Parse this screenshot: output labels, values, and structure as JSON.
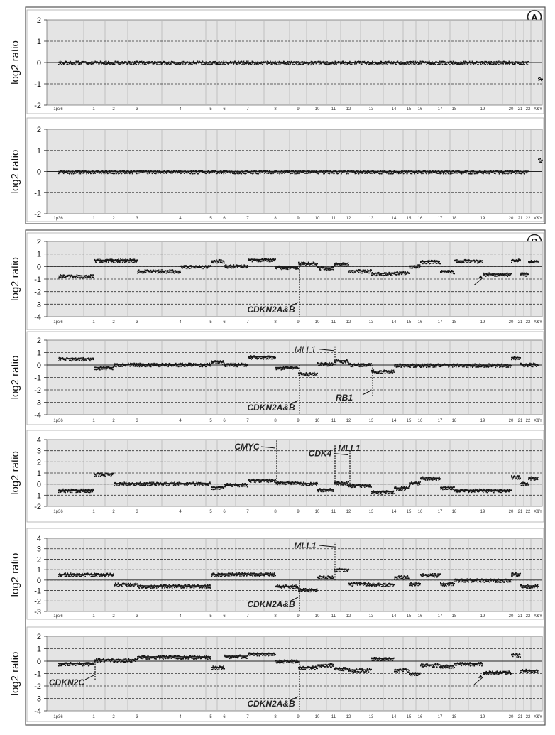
{
  "panels": [
    {
      "label": "A"
    },
    {
      "label": "B"
    }
  ],
  "chromosome_labels": [
    "1p36",
    "1",
    "2",
    "3",
    "4",
    "5",
    "6",
    "7",
    "8",
    "9",
    "10",
    "11",
    "12",
    "13",
    "14",
    "15",
    "16",
    "17",
    "18",
    "19",
    "20",
    "21",
    "22",
    "X&Y"
  ],
  "chart_data": [
    {
      "type": "scatter",
      "panel": "A",
      "ylabel": "log2 ratio",
      "ylim": [
        -2,
        2
      ],
      "yticks": [
        -2,
        -1,
        0,
        1,
        2
      ],
      "grid": true,
      "series": [
        {
          "segments": [
            {
              "from": "1p36",
              "to": "22",
              "y": 0.0
            },
            {
              "from": "X&Y",
              "to": "X&Y",
              "y": -0.75
            }
          ]
        }
      ],
      "annotations": []
    },
    {
      "type": "scatter",
      "panel": "A",
      "ylabel": "log2 ratio",
      "ylim": [
        -2,
        2
      ],
      "yticks": [
        -2,
        -1,
        0,
        1,
        2
      ],
      "grid": true,
      "series": [
        {
          "segments": [
            {
              "from": "1p36",
              "to": "22",
              "y": 0.0
            },
            {
              "from": "X&Y",
              "to": "X&Y",
              "y": 0.55
            }
          ]
        }
      ],
      "annotations": []
    },
    {
      "type": "scatter",
      "panel": "B",
      "ylabel": "log2 ratio",
      "ylim": [
        -4,
        2
      ],
      "yticks": [
        -4,
        -3,
        -2,
        -1,
        0,
        1,
        2
      ],
      "grid": true,
      "series": [
        {
          "segments": [
            {
              "from": "1p36",
              "to": "1",
              "y": -0.75
            },
            {
              "from": "1",
              "to": "3",
              "y": 0.5
            },
            {
              "from": "3",
              "to": "4",
              "y": -0.35
            },
            {
              "from": "4",
              "to": "5",
              "y": 0.0
            },
            {
              "from": "5",
              "to": "6",
              "y": 0.45
            },
            {
              "from": "6",
              "to": "7",
              "y": 0.05
            },
            {
              "from": "7",
              "to": "8",
              "y": 0.55
            },
            {
              "from": "8",
              "to": "9",
              "y": -0.05
            },
            {
              "from": "9",
              "to": "10",
              "y": 0.25
            },
            {
              "from": "10",
              "to": "11",
              "y": -0.1
            },
            {
              "from": "11",
              "to": "12",
              "y": 0.2
            },
            {
              "from": "12",
              "to": "13",
              "y": -0.35
            },
            {
              "from": "13",
              "to": "14",
              "y": -0.55
            },
            {
              "from": "14",
              "to": "15",
              "y": -0.5
            },
            {
              "from": "15",
              "to": "16",
              "y": 0.05
            },
            {
              "from": "16",
              "to": "17",
              "y": 0.4
            },
            {
              "from": "17",
              "to": "18",
              "y": -0.4
            },
            {
              "from": "18",
              "to": "19",
              "y": 0.45
            },
            {
              "from": "19",
              "to": "20",
              "y": -0.6
            },
            {
              "from": "20",
              "to": "21",
              "y": 0.5
            },
            {
              "from": "21",
              "to": "22",
              "y": -0.6
            },
            {
              "from": "22",
              "to": "X&Y",
              "y": 0.4
            }
          ]
        }
      ],
      "annotations": [
        {
          "text": "CDKN2A&B",
          "at": "9",
          "y": -4,
          "style": "bold-italic"
        },
        {
          "text": "",
          "at": "19",
          "y": -0.8,
          "style": "arrow-only"
        }
      ]
    },
    {
      "type": "scatter",
      "panel": "B",
      "ylabel": "log2 ratio",
      "ylim": [
        -4,
        2
      ],
      "yticks": [
        -4,
        -3,
        -2,
        -1,
        0,
        1,
        2
      ],
      "grid": true,
      "series": [
        {
          "segments": [
            {
              "from": "1p36",
              "to": "1",
              "y": 0.5
            },
            {
              "from": "1",
              "to": "2",
              "y": -0.2
            },
            {
              "from": "2",
              "to": "5",
              "y": 0.05
            },
            {
              "from": "5",
              "to": "6",
              "y": 0.25
            },
            {
              "from": "6",
              "to": "7",
              "y": 0.05
            },
            {
              "from": "7",
              "to": "8",
              "y": 0.65
            },
            {
              "from": "8",
              "to": "9",
              "y": -0.2
            },
            {
              "from": "9",
              "to": "10",
              "y": -0.7
            },
            {
              "from": "10",
              "to": "11",
              "y": 0.1
            },
            {
              "from": "11",
              "to": "12",
              "y": 0.35
            },
            {
              "from": "12",
              "to": "13",
              "y": 0.05
            },
            {
              "from": "13",
              "to": "14",
              "y": -0.5
            },
            {
              "from": "14",
              "to": "20",
              "y": 0.0
            },
            {
              "from": "20",
              "to": "21",
              "y": 0.6
            },
            {
              "from": "21",
              "to": "X&Y",
              "y": 0.05
            }
          ]
        }
      ],
      "annotations": [
        {
          "text": "MLL1",
          "at": "11",
          "y": 1.5,
          "style": "italic"
        },
        {
          "text": "CDKN2A&B",
          "at": "9",
          "y": -4,
          "style": "bold-italic"
        },
        {
          "text": "RB1",
          "at": "13",
          "y": -2.5,
          "style": "bold-italic"
        }
      ]
    },
    {
      "type": "scatter",
      "panel": "B",
      "ylabel": "log2 ratio",
      "ylim": [
        -2,
        4
      ],
      "yticks": [
        -2,
        -1,
        0,
        1,
        2,
        3,
        4
      ],
      "grid": true,
      "series": [
        {
          "segments": [
            {
              "from": "1p36",
              "to": "1",
              "y": -0.55
            },
            {
              "from": "1",
              "to": "2",
              "y": 0.9
            },
            {
              "from": "2",
              "to": "5",
              "y": 0.05
            },
            {
              "from": "5",
              "to": "6",
              "y": -0.3
            },
            {
              "from": "6",
              "to": "7",
              "y": -0.05
            },
            {
              "from": "7",
              "to": "8",
              "y": 0.35
            },
            {
              "from": "8",
              "to": "9",
              "y": 0.15
            },
            {
              "from": "9",
              "to": "10",
              "y": 0.05
            },
            {
              "from": "10",
              "to": "11",
              "y": -0.5
            },
            {
              "from": "11",
              "to": "12",
              "y": 0.1
            },
            {
              "from": "12",
              "to": "13",
              "y": -0.1
            },
            {
              "from": "13",
              "to": "14",
              "y": -0.7
            },
            {
              "from": "14",
              "to": "15",
              "y": -0.35
            },
            {
              "from": "15",
              "to": "16",
              "y": 0.1
            },
            {
              "from": "16",
              "to": "17",
              "y": 0.55
            },
            {
              "from": "17",
              "to": "18",
              "y": -0.3
            },
            {
              "from": "18",
              "to": "20",
              "y": -0.55
            },
            {
              "from": "20",
              "to": "21",
              "y": 0.65
            },
            {
              "from": "21",
              "to": "22",
              "y": 0.05
            },
            {
              "from": "22",
              "to": "X&Y",
              "y": 0.55
            }
          ]
        }
      ],
      "annotations": [
        {
          "text": "CMYC",
          "at": "8",
          "y": 4,
          "style": "bold-italic"
        },
        {
          "text": "MLL1",
          "at": "11",
          "y": 3.5,
          "style": "bold-italic"
        },
        {
          "text": "CDK4",
          "at": "12",
          "y": 3,
          "style": "bold-italic"
        }
      ]
    },
    {
      "type": "scatter",
      "panel": "B",
      "ylabel": "log2 ratio",
      "ylim": [
        -3,
        4
      ],
      "yticks": [
        -3,
        -2,
        -1,
        0,
        1,
        2,
        3,
        4
      ],
      "grid": true,
      "series": [
        {
          "segments": [
            {
              "from": "1p36",
              "to": "2",
              "y": 0.55
            },
            {
              "from": "2",
              "to": "3",
              "y": -0.4
            },
            {
              "from": "3",
              "to": "5",
              "y": -0.55
            },
            {
              "from": "5",
              "to": "6",
              "y": 0.55
            },
            {
              "from": "6",
              "to": "7",
              "y": 0.6
            },
            {
              "from": "7",
              "to": "8",
              "y": 0.6
            },
            {
              "from": "8",
              "to": "9",
              "y": -0.6
            },
            {
              "from": "9",
              "to": "10",
              "y": -0.9
            },
            {
              "from": "10",
              "to": "11",
              "y": 0.3
            },
            {
              "from": "11",
              "to": "12",
              "y": 1.0
            },
            {
              "from": "12",
              "to": "13",
              "y": -0.35
            },
            {
              "from": "13",
              "to": "14",
              "y": -0.4
            },
            {
              "from": "14",
              "to": "15",
              "y": 0.3
            },
            {
              "from": "15",
              "to": "16",
              "y": -0.35
            },
            {
              "from": "16",
              "to": "17",
              "y": 0.5
            },
            {
              "from": "17",
              "to": "18",
              "y": -0.35
            },
            {
              "from": "18",
              "to": "20",
              "y": 0.0
            },
            {
              "from": "20",
              "to": "21",
              "y": 0.6
            },
            {
              "from": "21",
              "to": "X&Y",
              "y": -0.55
            }
          ]
        }
      ],
      "annotations": [
        {
          "text": "MLL1",
          "at": "11",
          "y": 3.6,
          "style": "bold-italic"
        },
        {
          "text": "CDKN2A&B",
          "at": "9",
          "y": -3,
          "style": "bold-italic"
        }
      ]
    },
    {
      "type": "scatter",
      "panel": "B",
      "ylabel": "log2 ratio",
      "ylim": [
        -4,
        2
      ],
      "yticks": [
        -4,
        -3,
        -2,
        -1,
        0,
        1,
        2
      ],
      "grid": true,
      "series": [
        {
          "segments": [
            {
              "from": "1p36",
              "to": "1",
              "y": -0.2
            },
            {
              "from": "1",
              "to": "3",
              "y": 0.1
            },
            {
              "from": "3",
              "to": "5",
              "y": 0.35
            },
            {
              "from": "5",
              "to": "6",
              "y": -0.5
            },
            {
              "from": "6",
              "to": "7",
              "y": 0.4
            },
            {
              "from": "7",
              "to": "8",
              "y": 0.6
            },
            {
              "from": "8",
              "to": "9",
              "y": 0.0
            },
            {
              "from": "9",
              "to": "10",
              "y": -0.5
            },
            {
              "from": "10",
              "to": "11",
              "y": -0.3
            },
            {
              "from": "11",
              "to": "12",
              "y": -0.6
            },
            {
              "from": "12",
              "to": "13",
              "y": -0.7
            },
            {
              "from": "13",
              "to": "14",
              "y": 0.2
            },
            {
              "from": "14",
              "to": "15",
              "y": -0.7
            },
            {
              "from": "15",
              "to": "16",
              "y": -1.0
            },
            {
              "from": "16",
              "to": "17",
              "y": -0.3
            },
            {
              "from": "17",
              "to": "18",
              "y": -0.4
            },
            {
              "from": "18",
              "to": "19",
              "y": -0.2
            },
            {
              "from": "19",
              "to": "20",
              "y": -0.9
            },
            {
              "from": "20",
              "to": "21",
              "y": 0.5
            },
            {
              "from": "21",
              "to": "X&Y",
              "y": -0.75
            }
          ]
        }
      ],
      "annotations": [
        {
          "text": "CDKN2C",
          "at": "1",
          "y": -1.6,
          "style": "bold-italic"
        },
        {
          "text": "CDKN2A&B",
          "at": "9",
          "y": -4,
          "style": "bold-italic"
        },
        {
          "text": "",
          "at": "19",
          "y": -1.2,
          "style": "arrow-only"
        }
      ]
    }
  ]
}
